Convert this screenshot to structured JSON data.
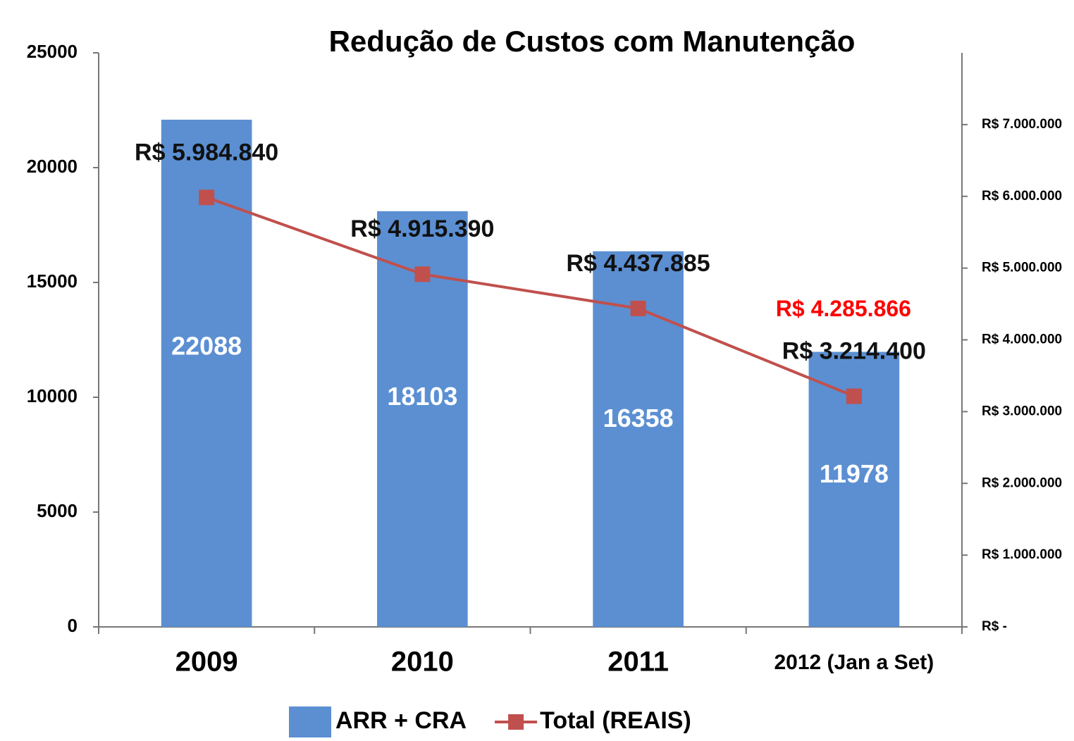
{
  "chart_data": {
    "type": "bar_line",
    "title": "Redução de Custos com Manutenção",
    "categories": [
      "2009",
      "2010",
      "2011",
      "2012 (Jan a Set)"
    ],
    "series": [
      {
        "name": "ARR + CRA",
        "type": "bar",
        "color": "#5b8fd2",
        "values": [
          22088,
          18103,
          16358,
          11978
        ]
      },
      {
        "name": "Total (REAIS)",
        "type": "line",
        "axis": "y2",
        "color": "#c0504d",
        "values": [
          5984840,
          4915390,
          4437885,
          3214400
        ],
        "value_labels": [
          "R$ 5.984.840",
          "R$ 4.915.390",
          "R$ 4.437.885",
          "R$ 3.214.400"
        ]
      }
    ],
    "annotations": [
      {
        "text": "R$ 4.285.866",
        "color": "#ff0000"
      }
    ],
    "ylim": [
      0,
      25000
    ],
    "yticks": [
      0,
      5000,
      10000,
      15000,
      20000,
      25000
    ],
    "y2lim": [
      0,
      8000000
    ],
    "y2ticks": [
      {
        "value": 0,
        "label": "R$ -"
      },
      {
        "value": 1000000,
        "label": "R$ 1.000.000"
      },
      {
        "value": 2000000,
        "label": "R$ 2.000.000"
      },
      {
        "value": 3000000,
        "label": "R$ 3.000.000"
      },
      {
        "value": 4000000,
        "label": "R$ 4.000.000"
      },
      {
        "value": 5000000,
        "label": "R$ 5.000.000"
      },
      {
        "value": 6000000,
        "label": "R$ 6.000.000"
      },
      {
        "value": 7000000,
        "label": "R$ 7.000.000"
      }
    ],
    "legend": "bottom"
  }
}
